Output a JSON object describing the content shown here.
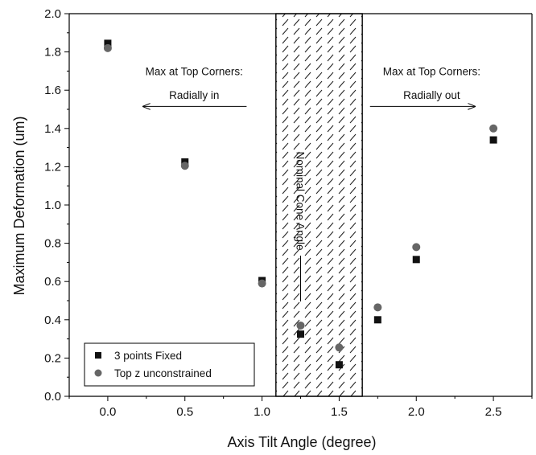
{
  "chart_data": {
    "type": "scatter",
    "xlabel": "Axis Tilt Angle (degree)",
    "ylabel": "Maximum Deformation (um)",
    "xlim": [
      -0.25,
      2.75
    ],
    "ylim": [
      0.0,
      2.0
    ],
    "x_ticks": [
      "0.0",
      "0.5",
      "1.0",
      "1.5",
      "2.0",
      "2.5"
    ],
    "y_ticks": [
      "0.0",
      "0.2",
      "0.4",
      "0.6",
      "0.8",
      "1.0",
      "1.2",
      "1.4",
      "1.6",
      "1.8",
      "2.0"
    ],
    "grid": false,
    "legend_position": "bottom-left",
    "series": [
      {
        "name": "3 points Fixed",
        "marker": "square",
        "color": "#111111",
        "x": [
          0.0,
          0.5,
          1.0,
          1.25,
          1.5,
          1.75,
          2.0,
          2.5
        ],
        "y": [
          1.845,
          1.225,
          0.605,
          0.325,
          0.165,
          0.4,
          0.715,
          1.34
        ]
      },
      {
        "name": "Top z unconstrained",
        "marker": "circle",
        "color": "#666666",
        "x": [
          0.0,
          0.5,
          1.0,
          1.25,
          1.5,
          1.75,
          2.0,
          2.5
        ],
        "y": [
          1.82,
          1.205,
          0.59,
          0.37,
          0.255,
          0.465,
          0.78,
          1.4
        ]
      }
    ],
    "shaded_region": {
      "x_range": [
        1.09,
        1.65
      ],
      "label": "Nominal Cone Angle"
    },
    "annotations": [
      {
        "lines": [
          "Max at Top Corners:",
          "Radially in"
        ],
        "arrow_from_x": 0.9,
        "arrow_to_x": 0.23,
        "arrow_y": 1.515,
        "text_x": 0.56,
        "text_y": [
          1.7,
          1.575
        ]
      },
      {
        "lines": [
          "Max at Top Corners:",
          "Radially out"
        ],
        "arrow_from_x": 1.7,
        "arrow_to_x": 2.38,
        "arrow_y": 1.515,
        "text_x": 2.1,
        "text_y": [
          1.7,
          1.575
        ]
      }
    ]
  }
}
